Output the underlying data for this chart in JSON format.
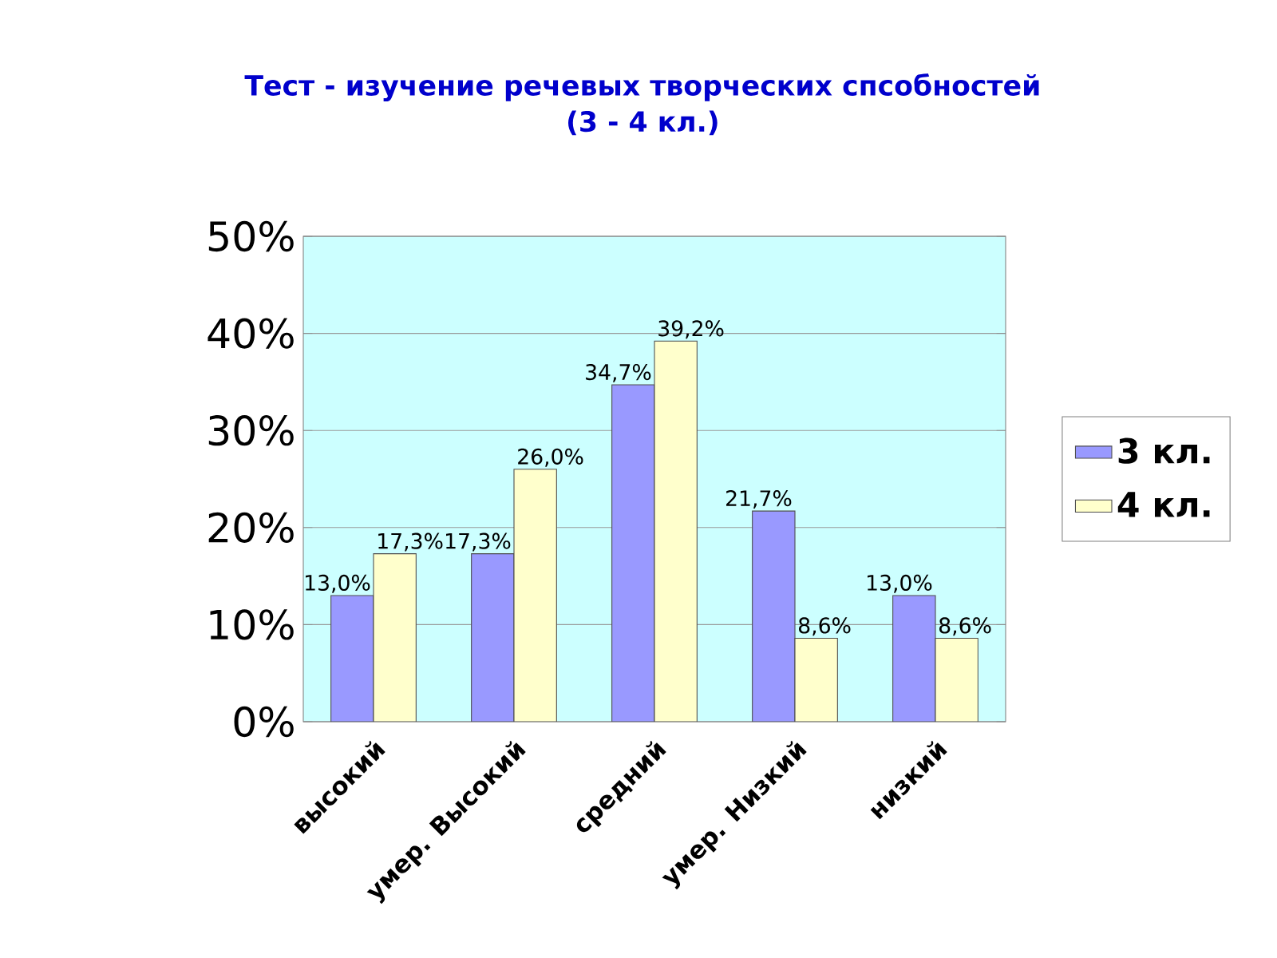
{
  "chart_data": {
    "type": "bar",
    "title": "Тест - изучение речевых творческих спсобностей",
    "subtitle": "(3 - 4 кл.)",
    "categories": [
      "высокий",
      "умер. Высокий",
      "средний",
      "умер. Низкий",
      "низкий"
    ],
    "series": [
      {
        "name": "3 кл.",
        "color": "#9999ff",
        "values": [
          13.0,
          17.3,
          34.7,
          21.7,
          13.0
        ],
        "value_labels": [
          "13,0%",
          "17,3%",
          "34,7%",
          "21,7%",
          "13,0%"
        ]
      },
      {
        "name": "4 кл.",
        "color": "#ffffcc",
        "values": [
          17.3,
          26.0,
          39.2,
          8.6,
          8.6
        ],
        "value_labels": [
          "17,3%",
          "26,0%",
          "39,2%",
          "8,6%",
          "8,6%"
        ]
      }
    ],
    "ylim": [
      0,
      50
    ],
    "yticks": [
      {
        "value": 0,
        "label": "0%"
      },
      {
        "value": 10,
        "label": "10%"
      },
      {
        "value": 20,
        "label": "20%"
      },
      {
        "value": 30,
        "label": "30%"
      },
      {
        "value": 40,
        "label": "40%"
      },
      {
        "value": 50,
        "label": "50%"
      }
    ],
    "grid": "y",
    "legend": "right"
  }
}
